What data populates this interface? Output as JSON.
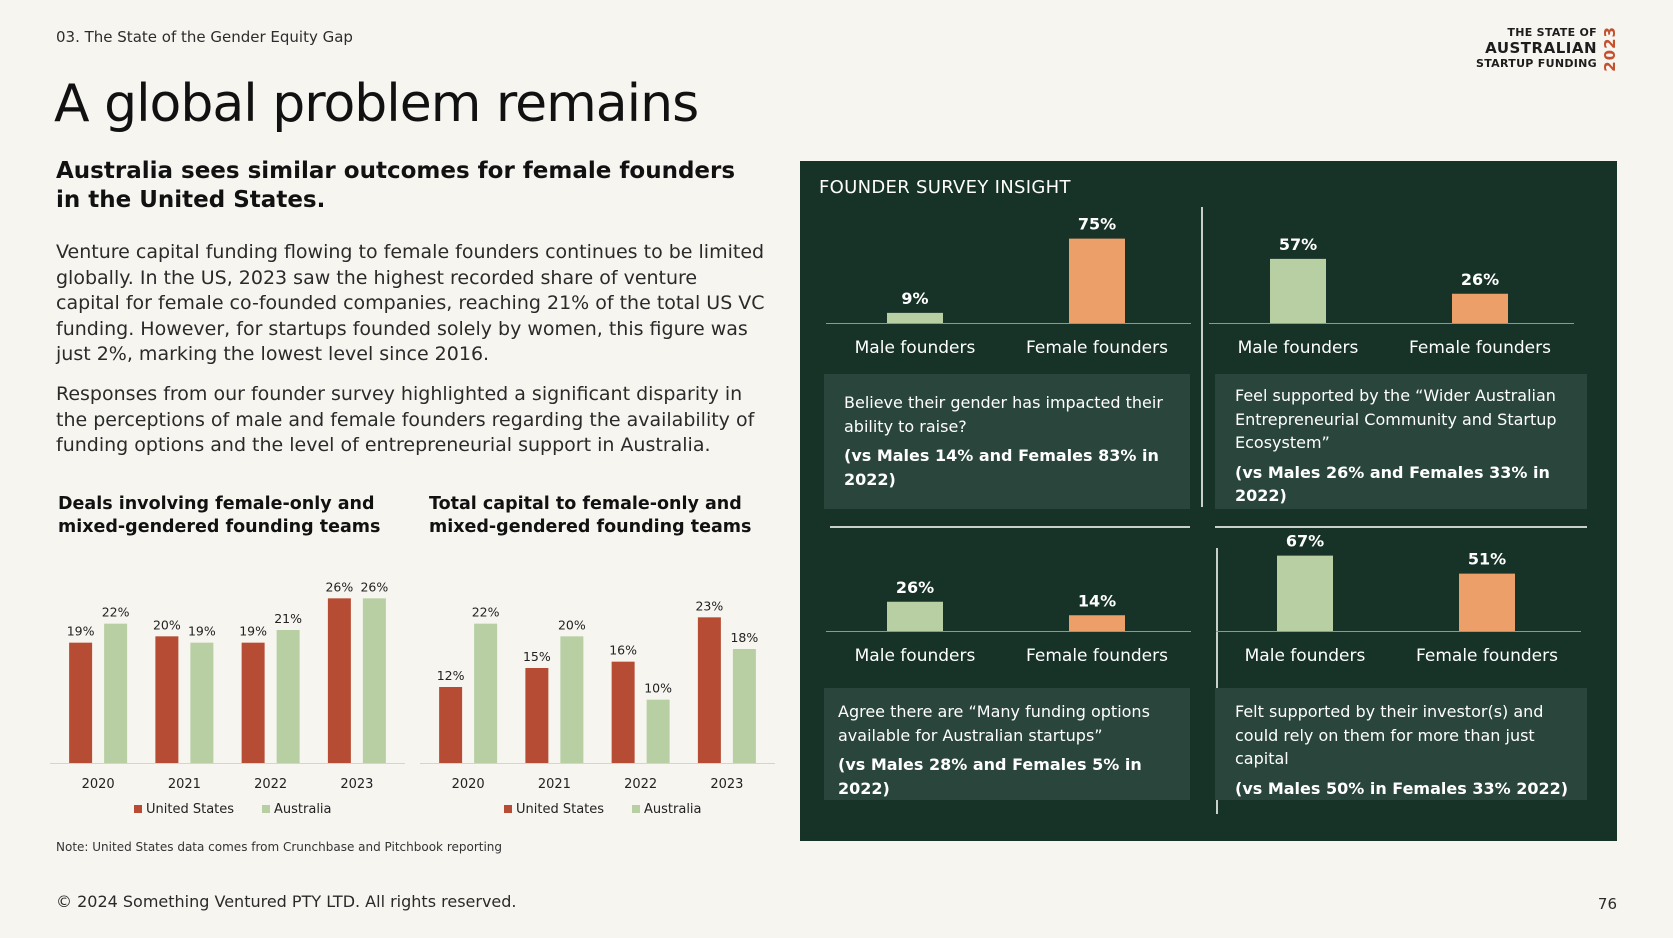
{
  "header": {
    "section": "03. The State of the Gender Equity Gap",
    "logo": {
      "line1": "THE STATE OF",
      "line2": "AUSTRALIAN",
      "line3": "STARTUP FUNDING",
      "year": "2023"
    }
  },
  "title": "A global problem remains",
  "subtitle": "Australia sees similar outcomes for female founders in the United States.",
  "paragraphs": [
    "Venture capital funding flowing to female founders continues to be limited globally. In the US, 2023 saw the highest recorded share of venture capital for female co-founded companies, reaching 21% of the total US VC funding. However, for startups founded solely by women, this figure was just 2%, marking the lowest level since 2016.",
    "Responses from our founder survey highlighted a significant disparity in the perceptions of male and female founders regarding the availability of funding options and the level of entrepreneurial support in Australia."
  ],
  "colors": {
    "us": "#b74c35",
    "australia": "#b7cfa2",
    "male": "#b7cfa2",
    "female": "#ec9f68",
    "panel": "#173328",
    "card": "#2a453b",
    "background": "#f7f5f0"
  },
  "chart_data": [
    {
      "type": "bar",
      "title": "Deals involving female-only and mixed-gendered founding teams",
      "categories": [
        "2020",
        "2021",
        "2022",
        "2023"
      ],
      "series": [
        {
          "name": "United States",
          "values": [
            19,
            20,
            19,
            26
          ]
        },
        {
          "name": "Australia",
          "values": [
            22,
            19,
            21,
            26
          ]
        }
      ],
      "value_format": "{v}%",
      "ylim": [
        0,
        30
      ],
      "grid": false,
      "legend": "bottom"
    },
    {
      "type": "bar",
      "title": "Total capital to female-only and mixed-gendered founding teams",
      "categories": [
        "2020",
        "2021",
        "2022",
        "2023"
      ],
      "series": [
        {
          "name": "United States",
          "values": [
            12,
            15,
            16,
            23
          ]
        },
        {
          "name": "Australia",
          "values": [
            22,
            20,
            10,
            18
          ]
        }
      ],
      "value_format": "{v}%",
      "ylim": [
        0,
        30
      ],
      "grid": false,
      "legend": "bottom"
    },
    {
      "type": "bar",
      "categories": [
        "Male founders",
        "Female founders"
      ],
      "values": [
        9,
        75
      ],
      "value_format": "{v}%",
      "ylim": [
        0,
        80
      ]
    },
    {
      "type": "bar",
      "categories": [
        "Male founders",
        "Female founders"
      ],
      "values": [
        57,
        26
      ],
      "value_format": "{v}%",
      "ylim": [
        0,
        80
      ]
    },
    {
      "type": "bar",
      "categories": [
        "Male founders",
        "Female founders"
      ],
      "values": [
        26,
        14
      ],
      "value_format": "{v}%",
      "ylim": [
        0,
        80
      ]
    },
    {
      "type": "bar",
      "categories": [
        "Male founders",
        "Female founders"
      ],
      "values": [
        67,
        51
      ],
      "value_format": "{v}%",
      "ylim": [
        0,
        80
      ]
    }
  ],
  "survey": {
    "title": "FOUNDER SURVEY INSIGHT",
    "cards": [
      {
        "question": "Believe their gender has impacted their ability to raise?",
        "comparison": "(vs Males 14% and Females 83% in 2022)"
      },
      {
        "question": "Feel supported by the “Wider Australian Entrepreneurial Community and Startup Ecosystem”",
        "comparison": "(vs Males 26% and Females 33% in 2022)"
      },
      {
        "question": "Agree there are “Many funding options available for Australian startups”",
        "comparison": "(vs Males 28% and Females 5% in 2022)"
      },
      {
        "question": "Felt supported by their investor(s) and could rely on them for more than just capital",
        "comparison": "(vs Males 50% in Females 33% 2022)"
      }
    ]
  },
  "note": "Note: United States data comes from Crunchbase and Pitchbook reporting",
  "footer": {
    "copyright": "© 2024 Something Ventured PTY LTD. All rights reserved.",
    "page_number": "76"
  }
}
